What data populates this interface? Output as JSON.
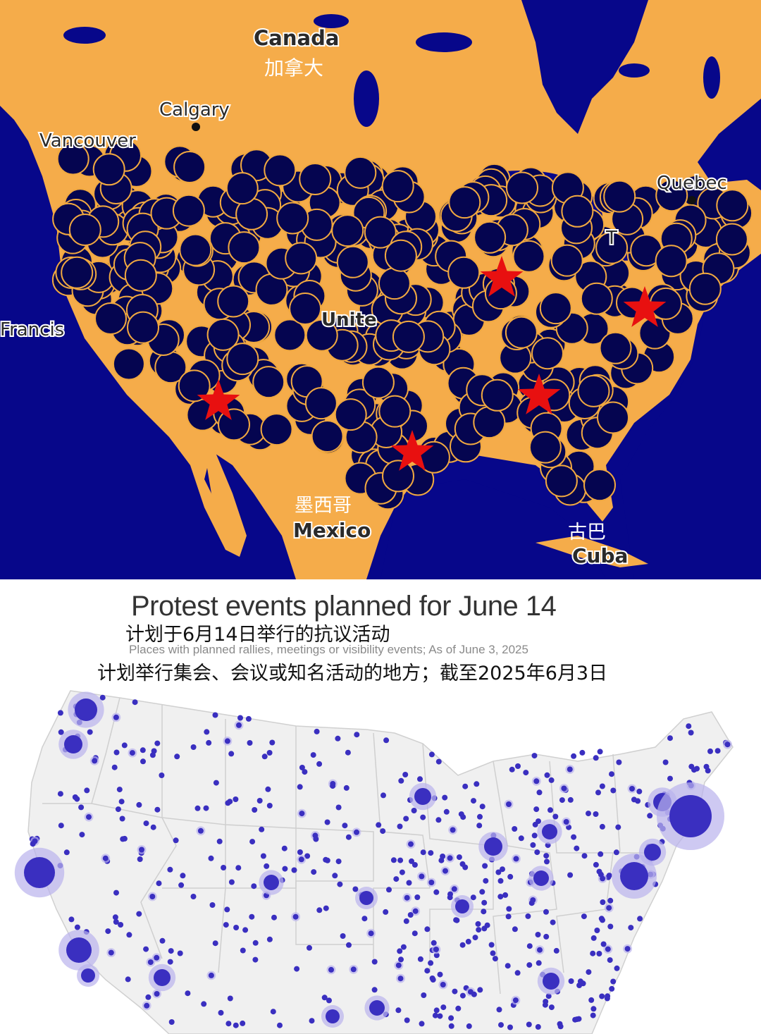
{
  "top_map": {
    "place_labels": [
      {
        "name": "canada-label",
        "text": "Canada"
      },
      {
        "name": "canada-cn-label",
        "text": "加拿大"
      },
      {
        "name": "calgary-label",
        "text": "Calgary"
      },
      {
        "name": "vancouver-label",
        "text": "Vancouver"
      },
      {
        "name": "quebec-label",
        "text": "Quebec"
      },
      {
        "name": "francisco-label",
        "text": "Francis"
      },
      {
        "name": "united-label",
        "text": "Unite"
      },
      {
        "name": "mexico-cn-label",
        "text": "墨西哥"
      },
      {
        "name": "mexico-label",
        "text": "Mexico"
      },
      {
        "name": "cuba-cn-label",
        "text": "古巴"
      },
      {
        "name": "cuba-label",
        "text": "Cuba"
      },
      {
        "name": "toronto-label",
        "text": "T"
      }
    ],
    "colors": {
      "water": "#07078a",
      "land": "#f5ac4a",
      "marker": "#050550",
      "marker_stroke": "#f0a840",
      "star": "#e81010"
    }
  },
  "chart": {
    "title": "Protest events planned for June 14",
    "title_cn": "计划于6月14日举行的抗议活动",
    "subtitle": "Places with planned rallies, meetings or visibility events; As of June 3, 2025",
    "subtitle_cn": "计划举行集会、会议或知名活动的地方；截至2025年6月3日"
  },
  "bottom_map": {
    "colors": {
      "land": "#f0f0f0",
      "border": "#cfcfcf",
      "dot": "#3a2fc0",
      "halo": "#b9b2ec"
    }
  }
}
